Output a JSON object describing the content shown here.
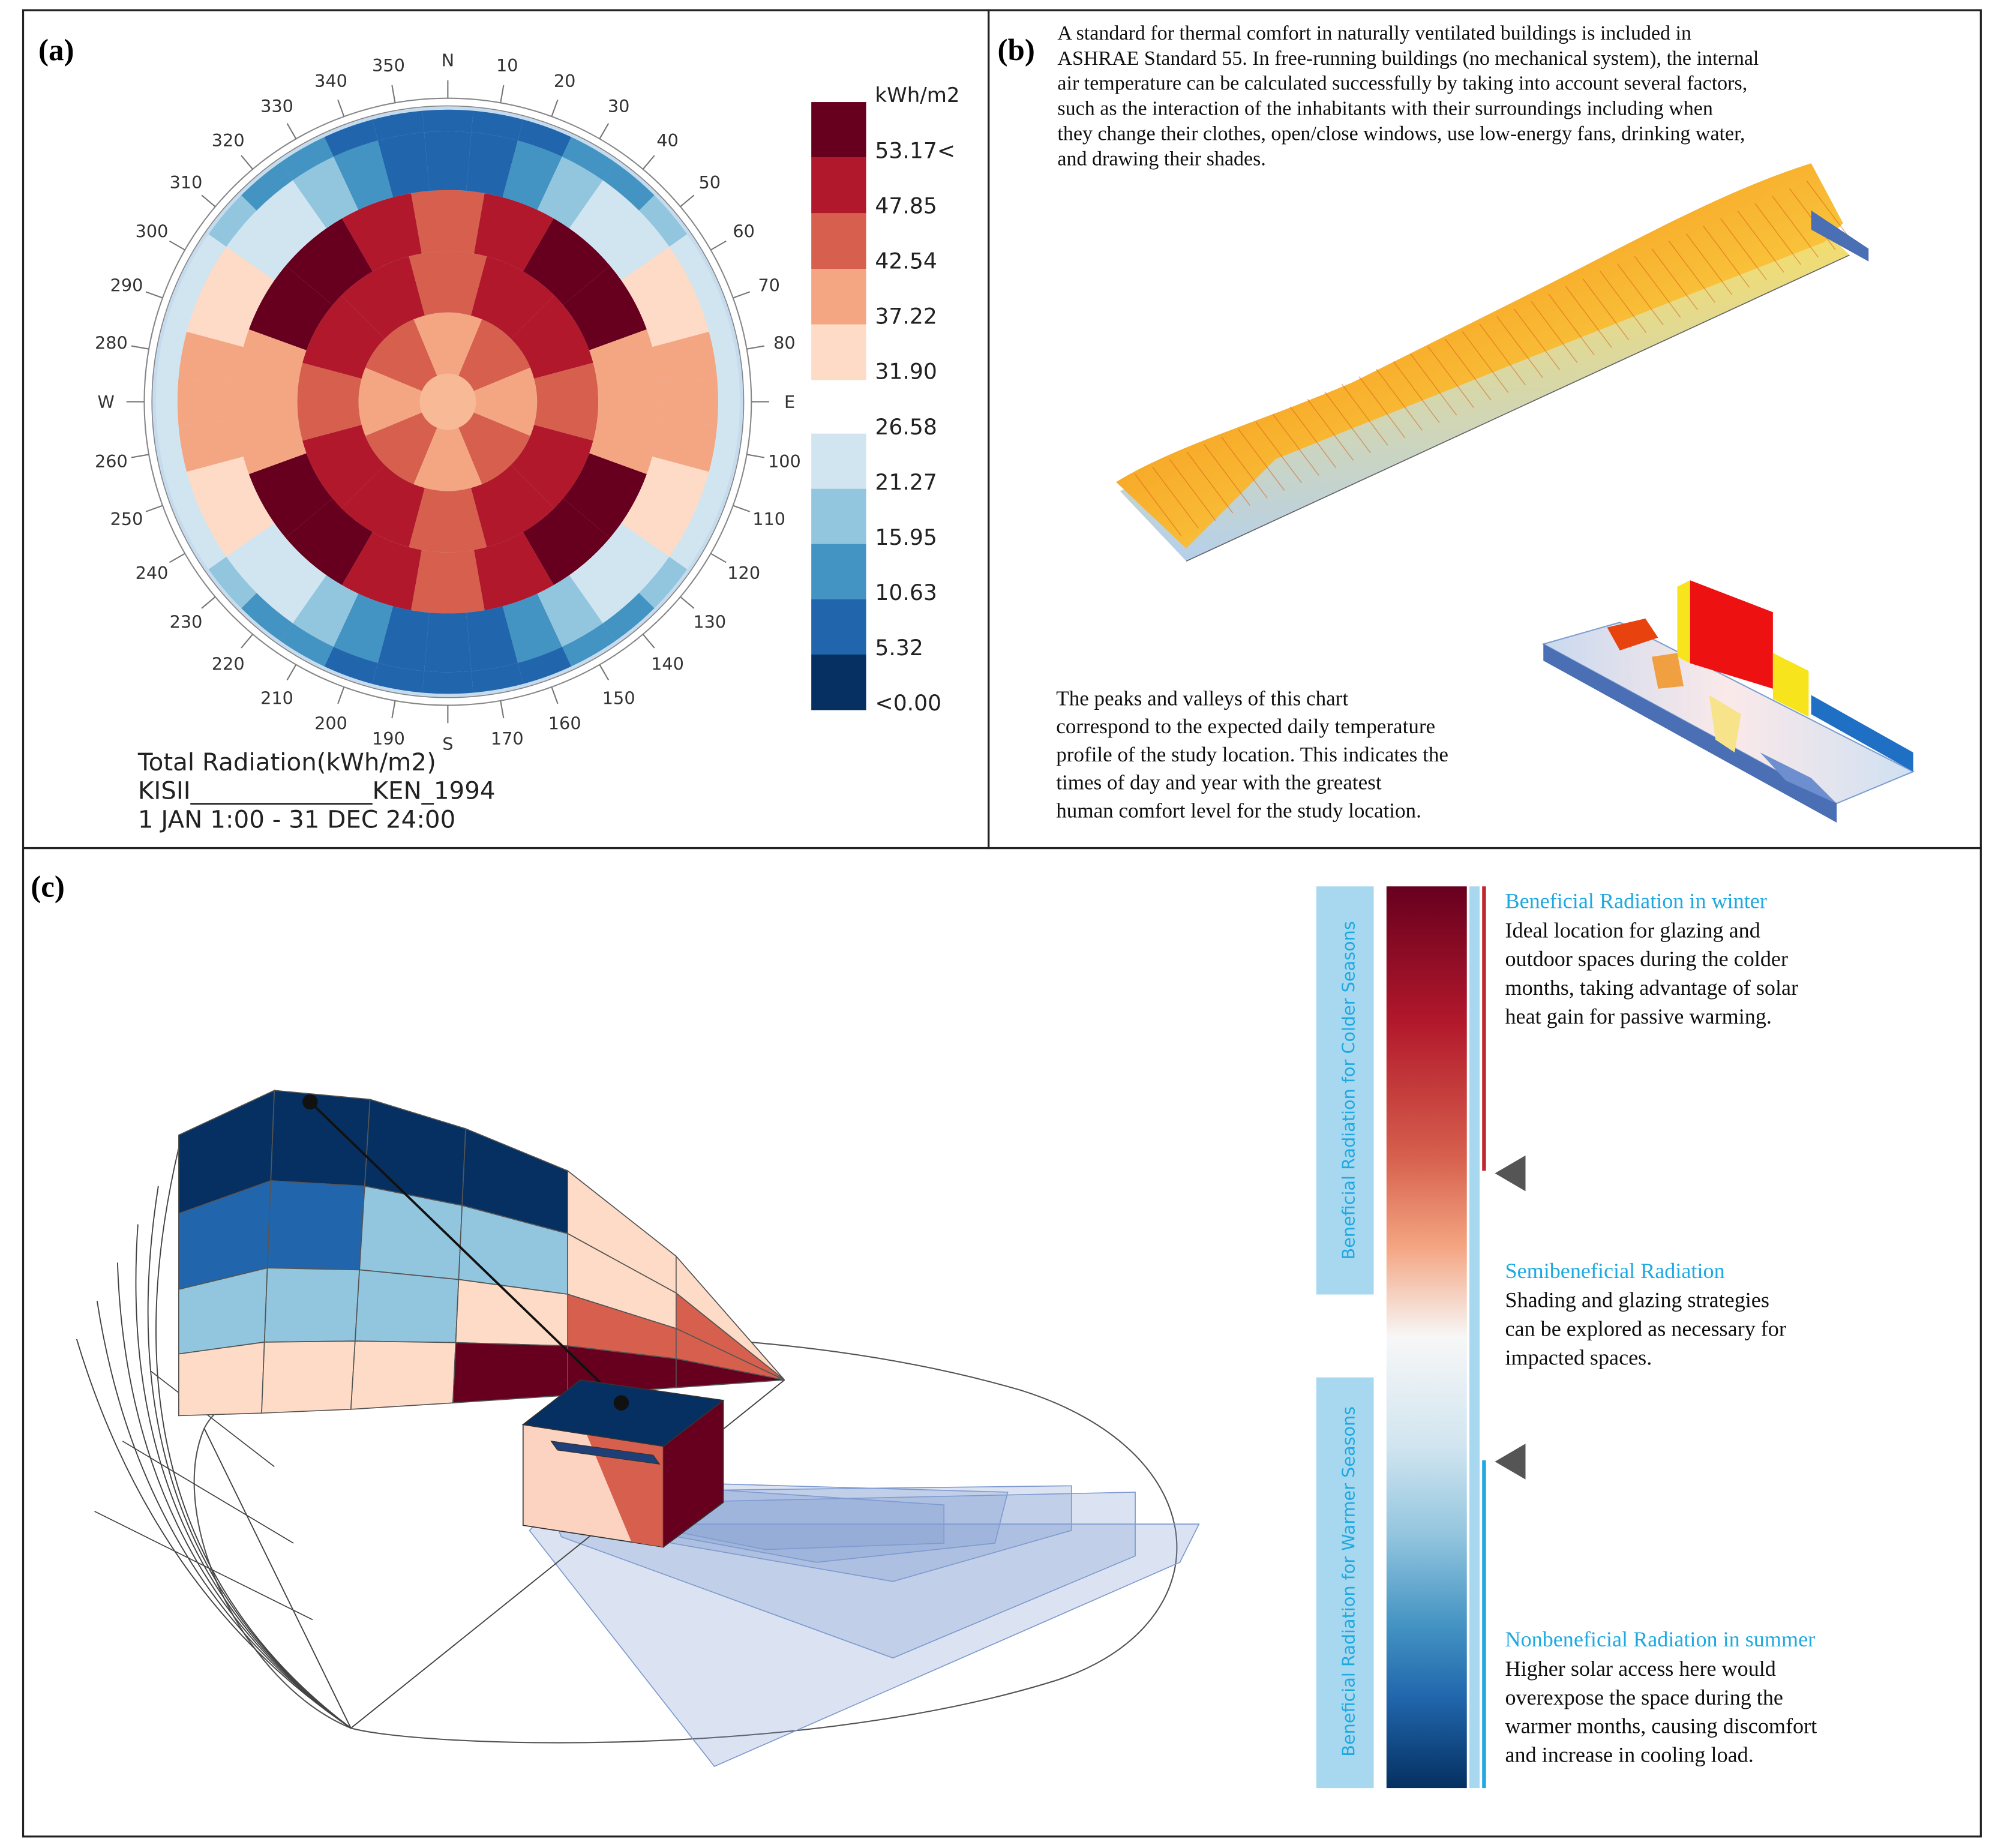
{
  "panel_a": {
    "label": "(a)",
    "compass": [
      "N",
      "10",
      "20",
      "30",
      "40",
      "50",
      "60",
      "70",
      "80",
      "E",
      "100",
      "110",
      "120",
      "130",
      "140",
      "150",
      "160",
      "170",
      "S",
      "190",
      "200",
      "210",
      "220",
      "230",
      "240",
      "250",
      "260",
      "W",
      "280",
      "290",
      "300",
      "310",
      "320",
      "330",
      "340",
      "350"
    ],
    "legend_unit": "kWh/m2",
    "legend_labels": [
      "53.17<",
      "47.85",
      "42.54",
      "37.22",
      "31.90",
      "26.58",
      "21.27",
      "15.95",
      "10.63",
      "5.32",
      "<0.00"
    ],
    "caption": [
      "Total Radiation(kWh/m2)",
      "KISII_______________KEN_1994",
      "1 JAN 1:00 - 31 DEC 24:00"
    ]
  },
  "panel_b": {
    "label": "(b)",
    "intro": [
      "A standard for thermal comfort in naturally ventilated buildings is included in",
      "ASHRAE Standard 55. In free-running buildings (no mechanical system), the internal",
      "air temperature can be calculated successfully by taking into account several factors,",
      "such as the interaction of the inhabitants with their surroundings including when",
      "they change their clothes, open/close windows, use low-energy fans, drinking water,",
      "and drawing their shades."
    ],
    "note": [
      "The peaks and valleys of this chart",
      "correspond to the expected daily temperature",
      "profile of the study location. This indicates the",
      "times of day and year with the greatest",
      "human comfort level for the study location."
    ]
  },
  "panel_c": {
    "label": "(c)",
    "band_labels": [
      "Beneficial Radiation for Colder Seasons",
      "Beneficial Radiation for Warmer  Seasons"
    ],
    "notes": [
      {
        "title": "Beneficial Radiation in winter",
        "lines": [
          "Ideal location for glazing and",
          "outdoor spaces during the colder",
          "months, taking advantage of solar",
          "heat gain for passive warming."
        ]
      },
      {
        "title": "Semibeneficial Radiation",
        "lines": [
          "Shading and glazing strategies",
          "can be explored as necessary for",
          "impacted spaces."
        ]
      },
      {
        "title": "Nonbeneficial Radiation in summer",
        "lines": [
          "Higher solar access here would",
          "overexpose the space during the",
          "warmer months, causing discomfort",
          "and increase in cooling load."
        ]
      }
    ]
  }
}
